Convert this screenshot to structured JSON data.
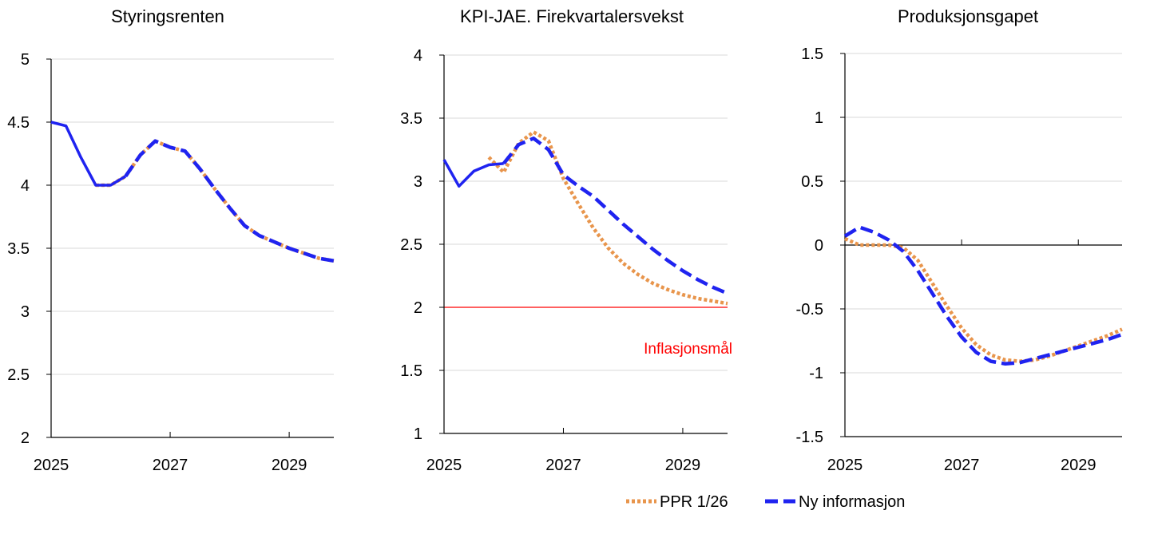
{
  "legend": {
    "position": "bottom-right",
    "entries": [
      {
        "label": "PPR 1/26",
        "color": "#E8954C",
        "style": "dotted"
      },
      {
        "label": "Ny informasjon",
        "color": "#1F23F0",
        "style": "dashed"
      }
    ]
  },
  "chart_data": [
    {
      "type": "line",
      "title": "Styringsrenten",
      "xlabel": "",
      "ylabel": "",
      "xlim": [
        2025,
        2029.75
      ],
      "ylim": [
        2,
        5
      ],
      "yticks": [
        2,
        2.5,
        3,
        3.5,
        4,
        4.5,
        5
      ],
      "xticks": [
        2025,
        2027,
        2029
      ],
      "grid": true,
      "zero_line": false,
      "target_line": null,
      "series": [
        {
          "style": "dotted",
          "color": "#E8954C",
          "x": [
            2025.75,
            2026.0,
            2026.25,
            2026.5,
            2026.75,
            2027.0,
            2027.25,
            2027.5,
            2027.75,
            2028.0,
            2028.25,
            2028.5,
            2028.75,
            2029.0,
            2029.25,
            2029.5,
            2029.75
          ],
          "y": [
            4.0,
            4.0,
            4.07,
            4.24,
            4.35,
            4.3,
            4.27,
            4.13,
            3.97,
            3.82,
            3.68,
            3.6,
            3.55,
            3.5,
            3.46,
            3.42,
            3.4
          ]
        },
        {
          "style": "solid",
          "color": "#1F23F0",
          "x": [
            2025.0,
            2025.25,
            2025.5,
            2025.75,
            2026.0,
            2026.25
          ],
          "y": [
            4.5,
            4.47,
            4.22,
            4.0,
            4.0,
            4.07
          ]
        },
        {
          "style": "dashed",
          "color": "#1F23F0",
          "x": [
            2026.25,
            2026.5,
            2026.75,
            2027.0,
            2027.25,
            2027.5,
            2027.75,
            2028.0,
            2028.25,
            2028.5,
            2028.75,
            2029.0,
            2029.25,
            2029.5,
            2029.75
          ],
          "y": [
            4.07,
            4.24,
            4.35,
            4.3,
            4.27,
            4.13,
            3.97,
            3.82,
            3.68,
            3.6,
            3.55,
            3.5,
            3.46,
            3.42,
            3.4
          ]
        }
      ]
    },
    {
      "type": "line",
      "title": "KPI-JAE. Firekvartalersvekst",
      "xlabel": "",
      "ylabel": "",
      "xlim": [
        2025,
        2029.75
      ],
      "ylim": [
        1,
        4
      ],
      "yticks": [
        1,
        1.5,
        2,
        2.5,
        3,
        3.5,
        4
      ],
      "xticks": [
        2025,
        2027,
        2029
      ],
      "grid": true,
      "zero_line": false,
      "target_line": {
        "value": 2,
        "color": "#FF0000",
        "label": "Inflasjonsmål"
      },
      "series": [
        {
          "style": "dotted",
          "color": "#E8954C",
          "x": [
            2025.75,
            2026.0,
            2026.25,
            2026.5,
            2026.75,
            2027.0,
            2027.25,
            2027.5,
            2027.75,
            2028.0,
            2028.25,
            2028.5,
            2028.75,
            2029.0,
            2029.25,
            2029.5,
            2029.75
          ],
          "y": [
            3.19,
            3.07,
            3.3,
            3.39,
            3.32,
            3.02,
            2.82,
            2.63,
            2.47,
            2.35,
            2.26,
            2.19,
            2.14,
            2.1,
            2.07,
            2.05,
            2.03
          ]
        },
        {
          "style": "solid",
          "color": "#1F23F0",
          "x": [
            2025.0,
            2025.25,
            2025.5,
            2025.75,
            2026.0
          ],
          "y": [
            3.17,
            2.96,
            3.08,
            3.13,
            3.14
          ]
        },
        {
          "style": "dashed",
          "color": "#1F23F0",
          "x": [
            2026.0,
            2026.25,
            2026.5,
            2026.75,
            2027.0,
            2027.25,
            2027.5,
            2027.75,
            2028.0,
            2028.25,
            2028.5,
            2028.75,
            2029.0,
            2029.25,
            2029.5,
            2029.75
          ],
          "y": [
            3.14,
            3.29,
            3.34,
            3.25,
            3.05,
            2.96,
            2.88,
            2.77,
            2.66,
            2.56,
            2.46,
            2.37,
            2.29,
            2.22,
            2.16,
            2.11
          ]
        }
      ]
    },
    {
      "type": "line",
      "title": "Produksjonsgapet",
      "xlabel": "",
      "ylabel": "",
      "xlim": [
        2025,
        2029.75
      ],
      "ylim": [
        -1.5,
        1.5
      ],
      "yticks": [
        -1.5,
        -1,
        -0.5,
        0,
        0.5,
        1,
        1.5
      ],
      "ytick_labels": [
        "-1.5",
        "-1",
        "-0.5",
        "0",
        "0.5",
        "1",
        "1.5"
      ],
      "xticks": [
        2025,
        2027,
        2029
      ],
      "grid": true,
      "zero_line": true,
      "target_line": null,
      "series": [
        {
          "style": "dotted",
          "color": "#E8954C",
          "x": [
            2025.0,
            2025.25,
            2025.5,
            2025.75,
            2026.0,
            2026.25,
            2026.5,
            2026.75,
            2027.0,
            2027.25,
            2027.5,
            2027.75,
            2028.0,
            2028.25,
            2028.5,
            2028.75,
            2029.0,
            2029.25,
            2029.5,
            2029.75
          ],
          "y": [
            0.05,
            0.0,
            0.0,
            0.0,
            -0.02,
            -0.12,
            -0.3,
            -0.48,
            -0.65,
            -0.78,
            -0.86,
            -0.9,
            -0.91,
            -0.9,
            -0.87,
            -0.83,
            -0.79,
            -0.75,
            -0.71,
            -0.66
          ]
        },
        {
          "style": "dashed",
          "color": "#1F23F0",
          "x": [
            2025.0,
            2025.25,
            2025.5,
            2025.75,
            2026.0,
            2026.25,
            2026.5,
            2026.75,
            2027.0,
            2027.25,
            2027.5,
            2027.75,
            2028.0,
            2028.25,
            2028.5,
            2028.75,
            2029.0,
            2029.25,
            2029.5,
            2029.75
          ],
          "y": [
            0.07,
            0.14,
            0.1,
            0.04,
            -0.05,
            -0.2,
            -0.38,
            -0.56,
            -0.72,
            -0.84,
            -0.91,
            -0.93,
            -0.92,
            -0.89,
            -0.86,
            -0.83,
            -0.8,
            -0.77,
            -0.74,
            -0.7
          ]
        }
      ]
    }
  ]
}
